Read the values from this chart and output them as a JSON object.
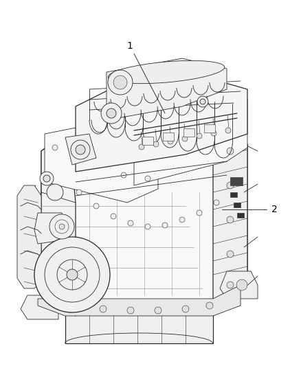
{
  "figure_width": 4.38,
  "figure_height": 5.33,
  "dpi": 100,
  "bg": "#ffffff",
  "line_color": "#2a2a2a",
  "fill_light": "#f8f8f8",
  "fill_mid": "#efefef",
  "fill_dark": "#e0e0e0",
  "label1_text": "1",
  "label2_text": "2",
  "label_fontsize": 10,
  "lw_main": 0.9,
  "lw_med": 0.6,
  "lw_thin": 0.4
}
